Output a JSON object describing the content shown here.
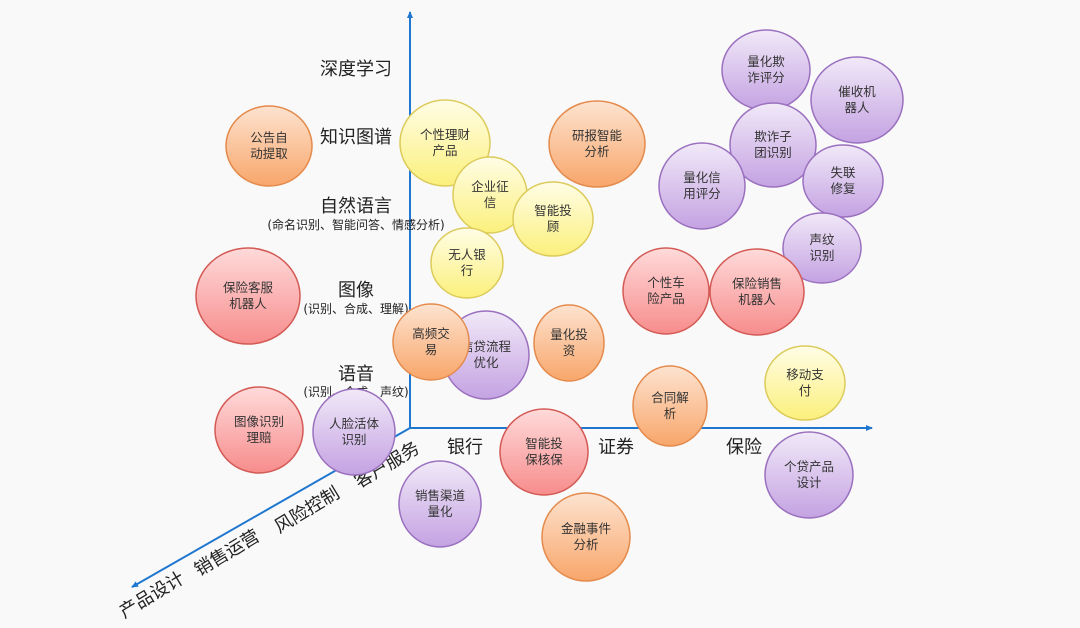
{
  "colors": {
    "axis": "#1f77d0",
    "orange": {
      "light": "#fde3d0",
      "dark": "#f8a66a",
      "stroke": "#e48a4c"
    },
    "yellow": {
      "light": "#fffde6",
      "dark": "#fbf07c",
      "stroke": "#dccb5a"
    },
    "red": {
      "light": "#ffdada",
      "dark": "#f78c8c",
      "stroke": "#d35a55"
    },
    "purple": {
      "light": "#f1e9f8",
      "dark": "#c4a2e2",
      "stroke": "#9a70bf"
    }
  },
  "vertical_axis": [
    {
      "label": "深度学习",
      "sub": ""
    },
    {
      "label": "知识图谱",
      "sub": ""
    },
    {
      "label": "自然语言",
      "sub": "(命名识别、智能问答、情感分析)"
    },
    {
      "label": "图像",
      "sub": "(识别、合成、理解)"
    },
    {
      "label": "语音",
      "sub": "(识别、合成、声纹)"
    }
  ],
  "horizontal_axis": [
    "银行",
    "证券",
    "保险"
  ],
  "diagonal_axis": [
    "客户服务",
    "风险控制",
    "销售运营",
    "产品设计"
  ],
  "bubbles": [
    {
      "lines": [
        "公告自",
        "动提取"
      ],
      "color": "orange"
    },
    {
      "lines": [
        "个性理财",
        "产品"
      ],
      "color": "yellow"
    },
    {
      "lines": [
        "研报智能",
        "分析"
      ],
      "color": "orange"
    },
    {
      "lines": [
        "企业征",
        "信"
      ],
      "color": "yellow"
    },
    {
      "lines": [
        "智能投",
        "顾"
      ],
      "color": "yellow"
    },
    {
      "lines": [
        "无人银",
        "行"
      ],
      "color": "yellow"
    },
    {
      "lines": [
        "保险客服",
        "机器人"
      ],
      "color": "red"
    },
    {
      "lines": [
        "信贷流程",
        "优化"
      ],
      "color": "purple"
    },
    {
      "lines": [
        "高频交",
        "易"
      ],
      "color": "orange"
    },
    {
      "lines": [
        "量化投",
        "资"
      ],
      "color": "orange"
    },
    {
      "lines": [
        "图像识别",
        "理赔"
      ],
      "color": "red"
    },
    {
      "lines": [
        "人脸活体",
        "识别"
      ],
      "color": "purple"
    },
    {
      "lines": [
        "智能投",
        "保核保"
      ],
      "color": "red"
    },
    {
      "lines": [
        "销售渠道",
        "量化"
      ],
      "color": "purple"
    },
    {
      "lines": [
        "金融事件",
        "分析"
      ],
      "color": "orange"
    },
    {
      "lines": [
        "合同解",
        "析"
      ],
      "color": "orange"
    },
    {
      "lines": [
        "量化欺",
        "诈评分"
      ],
      "color": "purple"
    },
    {
      "lines": [
        "催收机",
        "器人"
      ],
      "color": "purple"
    },
    {
      "lines": [
        "欺诈子",
        "团识别"
      ],
      "color": "purple"
    },
    {
      "lines": [
        "量化信",
        "用评分"
      ],
      "color": "purple"
    },
    {
      "lines": [
        "失联",
        "修复"
      ],
      "color": "purple"
    },
    {
      "lines": [
        "声纹",
        "识别"
      ],
      "color": "purple"
    },
    {
      "lines": [
        "个性车",
        "险产品"
      ],
      "color": "red"
    },
    {
      "lines": [
        "保险销售",
        "机器人"
      ],
      "color": "red"
    },
    {
      "lines": [
        "移动支",
        "付"
      ],
      "color": "yellow"
    },
    {
      "lines": [
        "个贷产品",
        "设计"
      ],
      "color": "purple"
    }
  ]
}
